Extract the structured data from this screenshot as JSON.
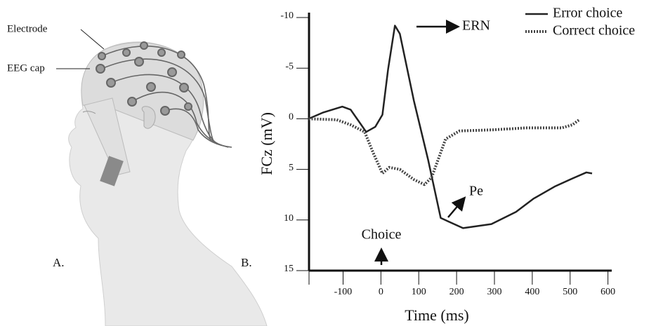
{
  "illustration": {
    "labels": [
      "Electrode",
      "EEG cap"
    ]
  },
  "panel_labels": [
    "A.",
    "B."
  ],
  "chart_data": {
    "type": "line",
    "xlabel": "Time (ms)",
    "ylabel": "FCz (mV)",
    "xlim": [
      -190,
      610
    ],
    "xticks": [
      -100,
      0,
      100,
      200,
      300,
      400,
      500,
      600
    ],
    "ylim": [
      -10,
      15
    ],
    "yticks": [
      -10,
      -5,
      0,
      5,
      10,
      15
    ],
    "invert_y": true,
    "legend": "upper right",
    "annotations": [
      "ERN",
      "Pe",
      "Choice"
    ],
    "series": [
      {
        "name": "Error choice",
        "color": "#222222",
        "style": "solid",
        "x": [
          -191,
          -154,
          -102,
          -80,
          -39,
          -15,
          4,
          19,
          37,
          50,
          87,
          125,
          158,
          217,
          292,
          357,
          403,
          459,
          506,
          543,
          558
        ],
        "values": [
          0,
          -0.6,
          -1.2,
          -0.9,
          1.3,
          0.8,
          -0.4,
          -4.9,
          -9.2,
          -8.4,
          -1.8,
          4.1,
          9.8,
          10.8,
          10.4,
          9.2,
          7.9,
          6.7,
          5.9,
          5.3,
          5.4
        ]
      },
      {
        "name": "Correct choice",
        "color": "#444444",
        "style": "dotted",
        "x": [
          -191,
          -117,
          -80,
          -43,
          -20,
          4,
          22,
          50,
          87,
          115,
          134,
          171,
          208,
          292,
          385,
          478,
          506,
          524
        ],
        "values": [
          0,
          0.1,
          0.6,
          1.3,
          3.4,
          5.4,
          4.8,
          5.0,
          6.0,
          6.5,
          5.8,
          2.0,
          1.2,
          1.1,
          0.9,
          0.9,
          0.6,
          0.1
        ]
      }
    ]
  }
}
